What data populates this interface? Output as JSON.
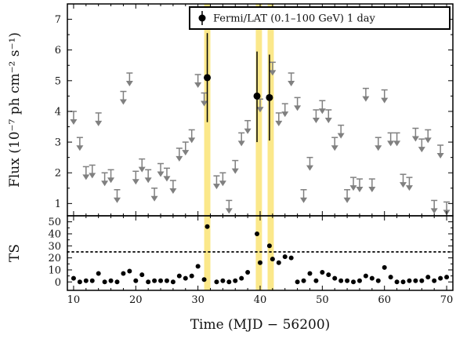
{
  "chart_data": {
    "type": "scatter",
    "x_label": "Time (MJD − 56200)",
    "xlim": [
      9,
      71
    ],
    "x_ticks": [
      10,
      20,
      30,
      40,
      50,
      60,
      70
    ],
    "highlight_bands": [
      [
        31,
        32
      ],
      [
        39.3,
        40.3
      ],
      [
        41.2,
        42.2
      ]
    ],
    "panels": [
      {
        "id": "flux",
        "y_label": "Flux (10⁻⁷ ph cm⁻² s⁻¹)",
        "ylim": [
          0.6,
          7.5
        ],
        "y_ticks": [
          1,
          2,
          3,
          4,
          5,
          6,
          7
        ],
        "legend": {
          "label": "Fermi/LAT (0.1–100 GeV) 1 day",
          "position": "top-right"
        },
        "detections": [
          {
            "x": 31.5,
            "y": 5.1,
            "yerr": [
              3.65,
              6.55
            ]
          },
          {
            "x": 39.5,
            "y": 4.5,
            "yerr": [
              3.0,
              5.95
            ]
          },
          {
            "x": 41.5,
            "y": 4.45,
            "yerr": [
              3.05,
              5.85
            ]
          }
        ],
        "upper_limits": {
          "color": "#808080",
          "x": [
            10,
            11,
            12,
            13,
            14,
            15,
            16,
            17,
            18,
            19,
            20,
            21,
            22,
            23,
            24,
            25,
            26,
            27,
            28,
            29,
            30,
            31,
            33,
            34,
            35,
            36,
            37,
            38,
            40,
            42,
            43,
            44,
            45,
            46,
            47,
            48,
            49,
            50,
            51,
            52,
            53,
            54,
            55,
            56,
            57,
            58,
            59,
            60,
            61,
            62,
            63,
            64,
            65,
            66,
            67,
            68,
            69,
            70
          ],
          "y": [
            4.0,
            3.15,
            2.2,
            2.25,
            3.95,
            2.0,
            2.1,
            1.45,
            4.65,
            5.25,
            2.05,
            2.45,
            2.1,
            1.5,
            2.3,
            2.15,
            1.75,
            2.8,
            3.0,
            3.4,
            5.2,
            4.6,
            1.9,
            2.0,
            1.1,
            2.4,
            3.3,
            3.7,
            4.4,
            5.6,
            3.95,
            4.25,
            5.25,
            4.45,
            1.45,
            2.5,
            4.05,
            4.35,
            4.05,
            3.15,
            3.55,
            1.45,
            1.85,
            1.8,
            4.75,
            1.8,
            3.15,
            4.7,
            3.3,
            3.3,
            1.95,
            1.85,
            3.45,
            3.1,
            3.4,
            1.1,
            2.9,
            1.05
          ]
        }
      },
      {
        "id": "ts",
        "y_label": "TS",
        "ylim": [
          -7,
          55
        ],
        "y_ticks": [
          0,
          10,
          20,
          30,
          40,
          50
        ],
        "threshold": 25,
        "points": {
          "x": [
            10,
            11,
            12,
            13,
            14,
            15,
            16,
            17,
            18,
            19,
            20,
            21,
            22,
            23,
            24,
            25,
            26,
            27,
            28,
            29,
            30,
            31,
            31.5,
            33,
            34,
            35,
            36,
            37,
            38,
            39.5,
            40,
            41.5,
            42,
            43,
            44,
            45,
            46,
            47,
            48,
            49,
            50,
            51,
            52,
            53,
            54,
            55,
            56,
            57,
            58,
            59,
            60,
            61,
            62,
            63,
            64,
            65,
            66,
            67,
            68,
            69,
            70
          ],
          "y": [
            3,
            0,
            1,
            1,
            7,
            0,
            1,
            0,
            7,
            9,
            1,
            6,
            0,
            1,
            1,
            1,
            0,
            5,
            3,
            5,
            13,
            2,
            46,
            0,
            1,
            0,
            1,
            3,
            8,
            40,
            16,
            30,
            19,
            16,
            21,
            20,
            0,
            1,
            7,
            1,
            8,
            6,
            3,
            1,
            1,
            0,
            1,
            5,
            3,
            1,
            12,
            4,
            0,
            0,
            1,
            1,
            1,
            4,
            1,
            3,
            4
          ]
        }
      }
    ]
  }
}
